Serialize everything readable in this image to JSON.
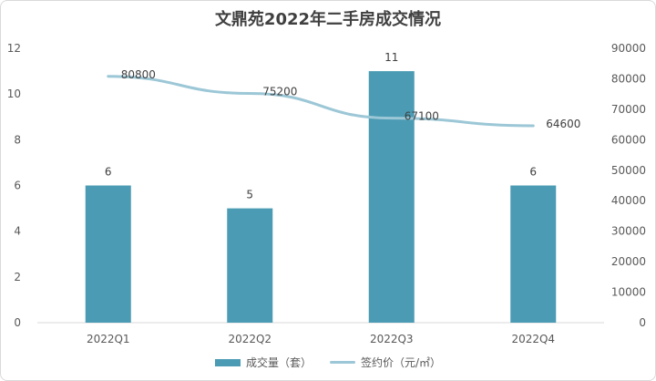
{
  "chart_data": {
    "type": "bar",
    "title": "文鼎苑2022年二手房成交情况",
    "categories": [
      "2022Q1",
      "2022Q2",
      "2022Q3",
      "2022Q4"
    ],
    "series": [
      {
        "name": "成交量（套）",
        "type": "bar",
        "axis": "left",
        "color": "#4a9bb3",
        "values": [
          6,
          5,
          11,
          6
        ]
      },
      {
        "name": "签约价（元/㎡）",
        "type": "line",
        "axis": "right",
        "color": "#9cc7d6",
        "values": [
          80800,
          75200,
          67100,
          64600
        ]
      }
    ],
    "y_left": {
      "min": 0,
      "max": 12,
      "ticks": [
        "0",
        "2",
        "4",
        "6",
        "8",
        "10",
        "12"
      ]
    },
    "y_right": {
      "min": 0,
      "max": 90000,
      "ticks": [
        "0",
        "10000",
        "20000",
        "30000",
        "40000",
        "50000",
        "60000",
        "70000",
        "80000",
        "90000"
      ]
    },
    "grid": false,
    "legend_position": "bottom"
  }
}
